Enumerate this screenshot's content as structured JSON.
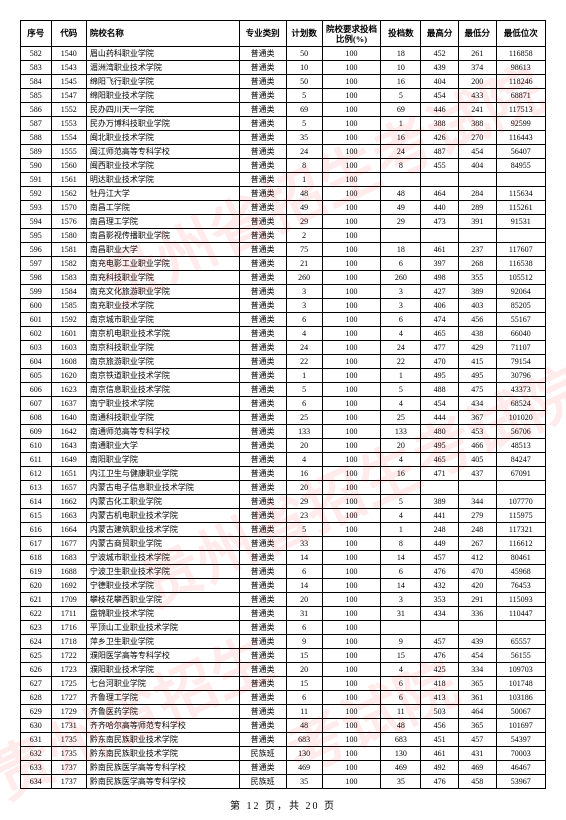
{
  "headers": {
    "seq": "序号",
    "code": "代码",
    "name": "院校名称",
    "type": "专业类别",
    "plan": "计划数",
    "ratio": "院校要求投档比例(%)",
    "archive": "投档数",
    "high": "最高分",
    "low": "最低分",
    "rank": "最低位次"
  },
  "rows": [
    {
      "seq": "582",
      "code": "1540",
      "name": "眉山药科职业学院",
      "type": "普通类",
      "plan": "50",
      "ratio": "100",
      "archive": "18",
      "high": "452",
      "low": "261",
      "rank": "116858"
    },
    {
      "seq": "583",
      "code": "1543",
      "name": "湄洲湾职业技术学院",
      "type": "普通类",
      "plan": "10",
      "ratio": "100",
      "archive": "10",
      "high": "439",
      "low": "374",
      "rank": "98613"
    },
    {
      "seq": "584",
      "code": "1545",
      "name": "绵阳飞行职业学院",
      "type": "普通类",
      "plan": "50",
      "ratio": "100",
      "archive": "16",
      "high": "404",
      "low": "200",
      "rank": "118246"
    },
    {
      "seq": "585",
      "code": "1547",
      "name": "绵阳职业技术学院",
      "type": "普通类",
      "plan": "5",
      "ratio": "100",
      "archive": "5",
      "high": "454",
      "low": "433",
      "rank": "68871"
    },
    {
      "seq": "586",
      "code": "1552",
      "name": "民办四川天一学院",
      "type": "普通类",
      "plan": "69",
      "ratio": "100",
      "archive": "69",
      "high": "446",
      "low": "241",
      "rank": "117513"
    },
    {
      "seq": "587",
      "code": "1553",
      "name": "民办万博科技职业学院",
      "type": "普通类",
      "plan": "5",
      "ratio": "100",
      "archive": "1",
      "high": "388",
      "low": "388",
      "rank": "92599"
    },
    {
      "seq": "588",
      "code": "1554",
      "name": "闽北职业技术学院",
      "type": "普通类",
      "plan": "35",
      "ratio": "100",
      "archive": "16",
      "high": "426",
      "low": "270",
      "rank": "116443"
    },
    {
      "seq": "589",
      "code": "1555",
      "name": "闽江师范高等专科学校",
      "type": "普通类",
      "plan": "24",
      "ratio": "100",
      "archive": "24",
      "high": "487",
      "low": "454",
      "rank": "56407"
    },
    {
      "seq": "590",
      "code": "1560",
      "name": "闽西职业技术学院",
      "type": "普通类",
      "plan": "8",
      "ratio": "100",
      "archive": "8",
      "high": "455",
      "low": "404",
      "rank": "84955"
    },
    {
      "seq": "591",
      "code": "1561",
      "name": "明达职业技术学院",
      "type": "普通类",
      "plan": "1",
      "ratio": "100",
      "archive": "",
      "high": "",
      "low": "",
      "rank": ""
    },
    {
      "seq": "592",
      "code": "1562",
      "name": "牡丹江大学",
      "type": "普通类",
      "plan": "48",
      "ratio": "100",
      "archive": "48",
      "high": "464",
      "low": "284",
      "rank": "115634"
    },
    {
      "seq": "593",
      "code": "1570",
      "name": "南昌工学院",
      "type": "普通类",
      "plan": "49",
      "ratio": "100",
      "archive": "49",
      "high": "440",
      "low": "289",
      "rank": "115261"
    },
    {
      "seq": "594",
      "code": "1576",
      "name": "南昌理工学院",
      "type": "普通类",
      "plan": "29",
      "ratio": "100",
      "archive": "29",
      "high": "473",
      "low": "391",
      "rank": "91531"
    },
    {
      "seq": "595",
      "code": "1580",
      "name": "南昌影视传播职业学院",
      "type": "普通类",
      "plan": "2",
      "ratio": "100",
      "archive": "",
      "high": "",
      "low": "",
      "rank": ""
    },
    {
      "seq": "596",
      "code": "1581",
      "name": "南昌职业大学",
      "type": "普通类",
      "plan": "75",
      "ratio": "100",
      "archive": "18",
      "high": "461",
      "low": "237",
      "rank": "117607"
    },
    {
      "seq": "597",
      "code": "1582",
      "name": "南充电影工业职业学院",
      "type": "普通类",
      "plan": "21",
      "ratio": "100",
      "archive": "6",
      "high": "397",
      "low": "268",
      "rank": "116538"
    },
    {
      "seq": "598",
      "code": "1583",
      "name": "南充科技职业学院",
      "type": "普通类",
      "plan": "260",
      "ratio": "100",
      "archive": "260",
      "high": "498",
      "low": "355",
      "rank": "105512"
    },
    {
      "seq": "599",
      "code": "1584",
      "name": "南充文化旅游职业学院",
      "type": "普通类",
      "plan": "3",
      "ratio": "100",
      "archive": "3",
      "high": "427",
      "low": "389",
      "rank": "92064"
    },
    {
      "seq": "600",
      "code": "1585",
      "name": "南充职业技术学院",
      "type": "普通类",
      "plan": "3",
      "ratio": "100",
      "archive": "3",
      "high": "406",
      "low": "403",
      "rank": "85205"
    },
    {
      "seq": "601",
      "code": "1592",
      "name": "南京城市职业学院",
      "type": "普通类",
      "plan": "6",
      "ratio": "100",
      "archive": "6",
      "high": "474",
      "low": "456",
      "rank": "55167"
    },
    {
      "seq": "602",
      "code": "1601",
      "name": "南京机电职业技术学院",
      "type": "普通类",
      "plan": "4",
      "ratio": "100",
      "archive": "4",
      "high": "465",
      "low": "438",
      "rank": "66040"
    },
    {
      "seq": "603",
      "code": "1603",
      "name": "南京科技职业学院",
      "type": "普通类",
      "plan": "24",
      "ratio": "100",
      "archive": "24",
      "high": "477",
      "low": "429",
      "rank": "71107"
    },
    {
      "seq": "604",
      "code": "1608",
      "name": "南京旅游职业学院",
      "type": "普通类",
      "plan": "22",
      "ratio": "100",
      "archive": "22",
      "high": "470",
      "low": "415",
      "rank": "79154"
    },
    {
      "seq": "605",
      "code": "1620",
      "name": "南京铁道职业技术学院",
      "type": "普通类",
      "plan": "1",
      "ratio": "100",
      "archive": "1",
      "high": "495",
      "low": "495",
      "rank": "30796"
    },
    {
      "seq": "606",
      "code": "1623",
      "name": "南京信息职业技术学院",
      "type": "普通类",
      "plan": "5",
      "ratio": "100",
      "archive": "5",
      "high": "488",
      "low": "475",
      "rank": "43373"
    },
    {
      "seq": "607",
      "code": "1637",
      "name": "南宁职业技术学院",
      "type": "普通类",
      "plan": "6",
      "ratio": "100",
      "archive": "4",
      "high": "454",
      "low": "434",
      "rank": "68524"
    },
    {
      "seq": "608",
      "code": "1640",
      "name": "南通科技职业学院",
      "type": "普通类",
      "plan": "25",
      "ratio": "100",
      "archive": "25",
      "high": "444",
      "low": "367",
      "rank": "101020"
    },
    {
      "seq": "609",
      "code": "1642",
      "name": "南通师范高等专科学校",
      "type": "普通类",
      "plan": "133",
      "ratio": "100",
      "archive": "133",
      "high": "480",
      "low": "453",
      "rank": "56706"
    },
    {
      "seq": "610",
      "code": "1643",
      "name": "南通职业大学",
      "type": "普通类",
      "plan": "20",
      "ratio": "100",
      "archive": "20",
      "high": "495",
      "low": "466",
      "rank": "48513"
    },
    {
      "seq": "611",
      "code": "1649",
      "name": "南阳职业学院",
      "type": "普通类",
      "plan": "4",
      "ratio": "100",
      "archive": "4",
      "high": "465",
      "low": "405",
      "rank": "84247"
    },
    {
      "seq": "612",
      "code": "1651",
      "name": "内江卫生与健康职业学院",
      "type": "普通类",
      "plan": "16",
      "ratio": "100",
      "archive": "16",
      "high": "471",
      "low": "437",
      "rank": "67091"
    },
    {
      "seq": "613",
      "code": "1657",
      "name": "内蒙古电子信息职业技术学院",
      "type": "普通类",
      "plan": "20",
      "ratio": "100",
      "archive": "",
      "high": "",
      "low": "",
      "rank": ""
    },
    {
      "seq": "614",
      "code": "1662",
      "name": "内蒙古化工职业学院",
      "type": "普通类",
      "plan": "29",
      "ratio": "100",
      "archive": "5",
      "high": "389",
      "low": "344",
      "rank": "107770"
    },
    {
      "seq": "615",
      "code": "1663",
      "name": "内蒙古机电职业技术学院",
      "type": "普通类",
      "plan": "23",
      "ratio": "100",
      "archive": "4",
      "high": "441",
      "low": "279",
      "rank": "115975"
    },
    {
      "seq": "616",
      "code": "1664",
      "name": "内蒙古建筑职业技术学院",
      "type": "普通类",
      "plan": "5",
      "ratio": "100",
      "archive": "1",
      "high": "248",
      "low": "248",
      "rank": "117321"
    },
    {
      "seq": "617",
      "code": "1677",
      "name": "内蒙古商贸职业学院",
      "type": "普通类",
      "plan": "33",
      "ratio": "100",
      "archive": "8",
      "high": "449",
      "low": "267",
      "rank": "116612"
    },
    {
      "seq": "618",
      "code": "1683",
      "name": "宁波城市职业技术学院",
      "type": "普通类",
      "plan": "14",
      "ratio": "100",
      "archive": "14",
      "high": "457",
      "low": "412",
      "rank": "80461"
    },
    {
      "seq": "619",
      "code": "1688",
      "name": "宁波卫生职业技术学院",
      "type": "普通类",
      "plan": "6",
      "ratio": "100",
      "archive": "6",
      "high": "476",
      "low": "470",
      "rank": "45968"
    },
    {
      "seq": "620",
      "code": "1692",
      "name": "宁德职业技术学院",
      "type": "普通类",
      "plan": "14",
      "ratio": "100",
      "archive": "14",
      "high": "432",
      "low": "420",
      "rank": "76453"
    },
    {
      "seq": "621",
      "code": "1709",
      "name": "攀枝花攀西职业学院",
      "type": "普通类",
      "plan": "20",
      "ratio": "100",
      "archive": "3",
      "high": "353",
      "low": "291",
      "rank": "115093"
    },
    {
      "seq": "622",
      "code": "1711",
      "name": "盘锦职业技术学院",
      "type": "普通类",
      "plan": "31",
      "ratio": "100",
      "archive": "31",
      "high": "434",
      "low": "336",
      "rank": "110447"
    },
    {
      "seq": "623",
      "code": "1716",
      "name": "平顶山工业职业技术学院",
      "type": "普通类",
      "plan": "6",
      "ratio": "100",
      "archive": "",
      "high": "",
      "low": "",
      "rank": ""
    },
    {
      "seq": "624",
      "code": "1718",
      "name": "萍乡卫生职业学院",
      "type": "普通类",
      "plan": "9",
      "ratio": "100",
      "archive": "9",
      "high": "457",
      "low": "439",
      "rank": "65557"
    },
    {
      "seq": "625",
      "code": "1722",
      "name": "濮阳医学高等专科学校",
      "type": "普通类",
      "plan": "15",
      "ratio": "100",
      "archive": "15",
      "high": "476",
      "low": "454",
      "rank": "56155"
    },
    {
      "seq": "626",
      "code": "1723",
      "name": "濮阳职业技术学院",
      "type": "普通类",
      "plan": "20",
      "ratio": "100",
      "archive": "4",
      "high": "425",
      "low": "334",
      "rank": "109703"
    },
    {
      "seq": "627",
      "code": "1725",
      "name": "七台河职业学院",
      "type": "普通类",
      "plan": "15",
      "ratio": "100",
      "archive": "6",
      "high": "418",
      "low": "365",
      "rank": "101748"
    },
    {
      "seq": "628",
      "code": "1727",
      "name": "齐鲁理工学院",
      "type": "普通类",
      "plan": "6",
      "ratio": "100",
      "archive": "6",
      "high": "413",
      "low": "361",
      "rank": "103186"
    },
    {
      "seq": "629",
      "code": "1729",
      "name": "齐鲁医药学院",
      "type": "普通类",
      "plan": "11",
      "ratio": "100",
      "archive": "11",
      "high": "503",
      "low": "464",
      "rank": "50067"
    },
    {
      "seq": "630",
      "code": "1731",
      "name": "齐齐哈尔高等师范专科学校",
      "type": "普通类",
      "plan": "48",
      "ratio": "100",
      "archive": "48",
      "high": "456",
      "low": "365",
      "rank": "101697"
    },
    {
      "seq": "631",
      "code": "1735",
      "name": "黔东南民族职业技术学院",
      "type": "普通类",
      "plan": "683",
      "ratio": "100",
      "archive": "683",
      "high": "451",
      "low": "457",
      "rank": "54397"
    },
    {
      "seq": "632",
      "code": "1735",
      "name": "黔东南民族职业技术学院",
      "type": "民族班",
      "plan": "130",
      "ratio": "100",
      "archive": "130",
      "high": "461",
      "low": "431",
      "rank": "70003"
    },
    {
      "seq": "633",
      "code": "1737",
      "name": "黔南民族医学高等专科学校",
      "type": "普通类",
      "plan": "469",
      "ratio": "100",
      "archive": "469",
      "high": "492",
      "low": "469",
      "rank": "46467"
    },
    {
      "seq": "634",
      "code": "1737",
      "name": "黔南民族医学高等专科学校",
      "type": "民族班",
      "plan": "35",
      "ratio": "100",
      "archive": "35",
      "high": "476",
      "low": "458",
      "rank": "53967"
    }
  ],
  "footer": "第 12 页，共 20 页"
}
